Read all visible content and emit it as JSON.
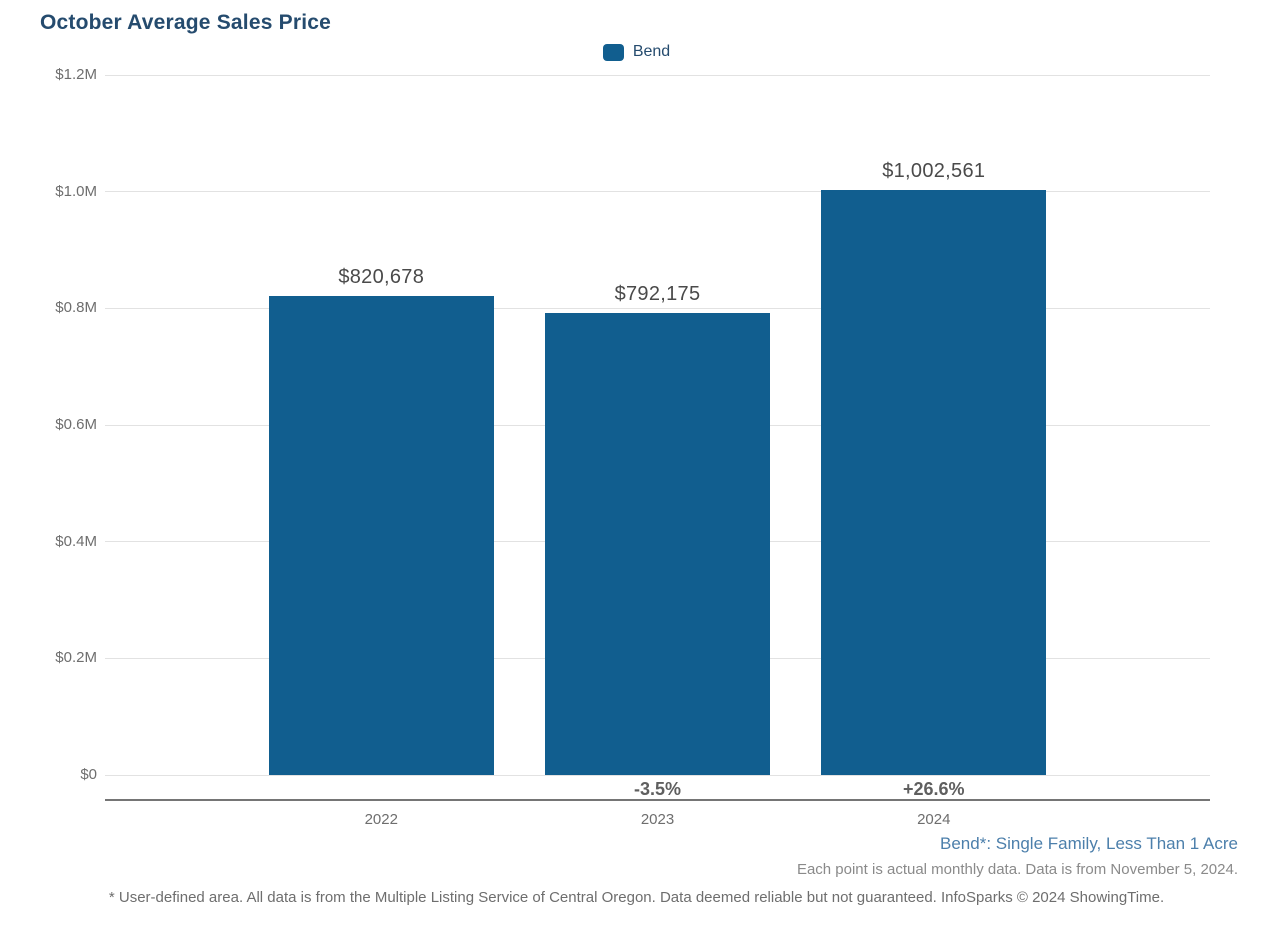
{
  "title": "October Average Sales Price",
  "legend": {
    "label": "Bend",
    "color": "#115e8f"
  },
  "chart_data": {
    "type": "bar",
    "title": "October Average Sales Price",
    "series_name": "Bend",
    "categories": [
      "2022",
      "2023",
      "2024"
    ],
    "values": [
      820678,
      792175,
      1002561
    ],
    "value_labels": [
      "$820,678",
      "$792,175",
      "$1,002,561"
    ],
    "change_labels": [
      "",
      "-3.5%",
      "+26.6%"
    ],
    "bar_color": "#115e8f",
    "xlabel": "",
    "ylabel": "",
    "ylim": [
      0,
      1200000
    ],
    "grid": true,
    "legend_position": "top-center",
    "yticks": [
      {
        "value": 0,
        "label": "$0"
      },
      {
        "value": 200000,
        "label": "$0.2M"
      },
      {
        "value": 400000,
        "label": "$0.4M"
      },
      {
        "value": 600000,
        "label": "$0.6M"
      },
      {
        "value": 800000,
        "label": "$0.8M"
      },
      {
        "value": 1000000,
        "label": "$1.0M"
      },
      {
        "value": 1200000,
        "label": "$1.2M"
      }
    ]
  },
  "footnotes": {
    "segment": "Bend*: Single Family, Less Than 1 Acre",
    "data_note": "Each point is actual monthly data. Data is from November 5, 2024.",
    "disclaimer": "* User-defined area. All data is from the Multiple Listing Service of Central Oregon. Data deemed reliable but not guaranteed. InfoSparks © 2024 ShowingTime."
  }
}
